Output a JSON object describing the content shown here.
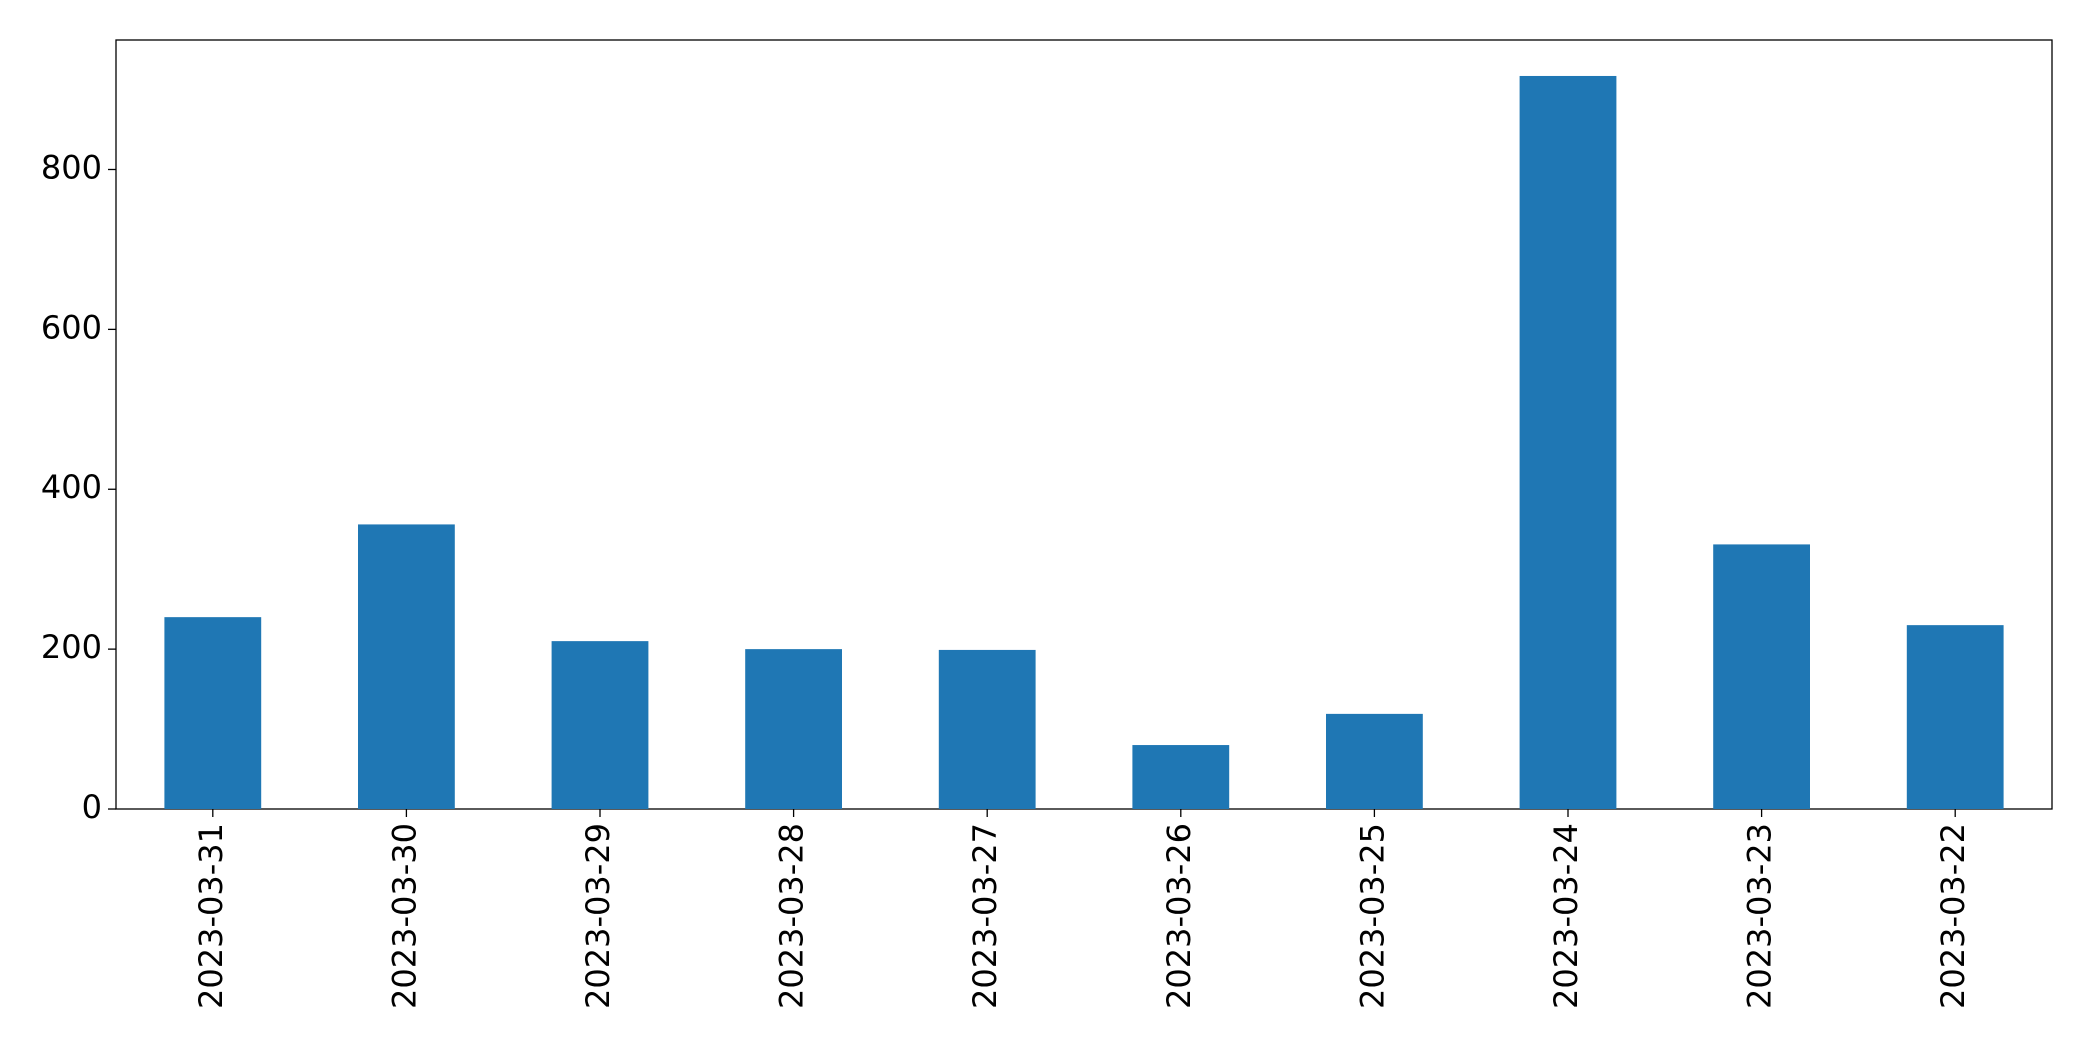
{
  "chart_data": {
    "type": "bar",
    "categories": [
      "2023-03-31",
      "2023-03-30",
      "2023-03-29",
      "2023-03-28",
      "2023-03-27",
      "2023-03-26",
      "2023-03-25",
      "2023-03-24",
      "2023-03-23",
      "2023-03-22"
    ],
    "values": [
      240,
      356,
      210,
      200,
      199,
      80,
      119,
      917,
      331,
      230
    ],
    "color": "#1f77b4",
    "ylim": [
      0,
      962
    ],
    "yticks": [
      0,
      200,
      400,
      600,
      800
    ],
    "grid": false
  }
}
